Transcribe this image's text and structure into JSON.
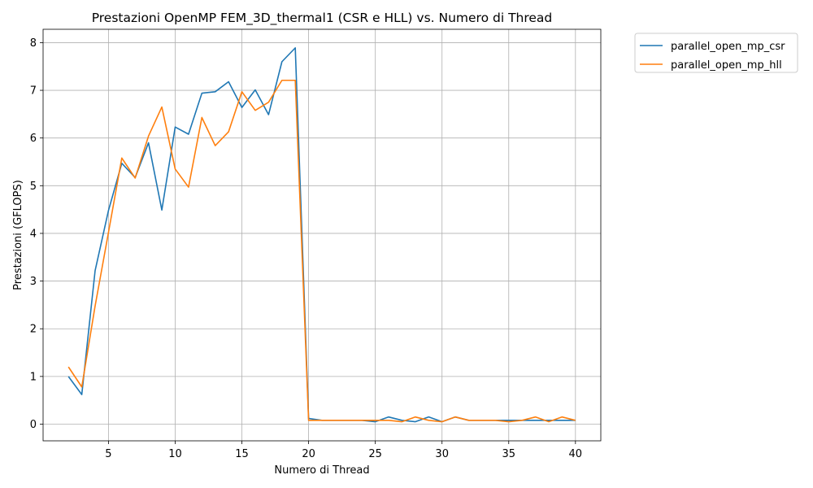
{
  "chart_data": {
    "type": "line",
    "title": "Prestazioni OpenMP FEM_3D_thermal1 (CSR e HLL) vs. Numero di Thread",
    "xlabel": "Numero di Thread",
    "ylabel": "Prestazioni (GFLOPS)",
    "xlim": [
      0.1,
      41.9
    ],
    "ylim": [
      -0.35,
      8.28
    ],
    "xticks": [
      5,
      10,
      15,
      20,
      25,
      30,
      35,
      40
    ],
    "yticks": [
      0,
      1,
      2,
      3,
      4,
      5,
      6,
      7,
      8
    ],
    "grid": true,
    "legend_position": "outside-top-right",
    "x": [
      2,
      3,
      4,
      5,
      6,
      7,
      8,
      9,
      10,
      11,
      12,
      13,
      14,
      15,
      16,
      17,
      18,
      19,
      20,
      21,
      22,
      23,
      24,
      25,
      26,
      27,
      28,
      29,
      30,
      31,
      32,
      33,
      34,
      35,
      36,
      37,
      38,
      39,
      40
    ],
    "series": [
      {
        "name": "parallel_open_mp_csr",
        "color": "#1f77b4",
        "values": [
          1.0,
          0.62,
          3.22,
          4.48,
          5.47,
          5.17,
          5.9,
          4.49,
          6.23,
          6.08,
          6.94,
          6.97,
          7.18,
          6.64,
          7.01,
          6.49,
          7.6,
          7.89,
          0.12,
          0.08,
          0.08,
          0.08,
          0.08,
          0.05,
          0.15,
          0.08,
          0.05,
          0.15,
          0.05,
          0.15,
          0.08,
          0.08,
          0.08,
          0.08,
          0.08,
          0.08,
          0.08,
          0.08,
          0.08
        ]
      },
      {
        "name": "parallel_open_mp_hll",
        "color": "#ff7f0e",
        "values": [
          1.2,
          0.78,
          2.48,
          4.02,
          5.58,
          5.16,
          6.04,
          6.65,
          5.35,
          4.97,
          6.43,
          5.84,
          6.13,
          6.97,
          6.58,
          6.75,
          7.21,
          7.21,
          0.08,
          0.08,
          0.08,
          0.08,
          0.08,
          0.08,
          0.08,
          0.05,
          0.15,
          0.08,
          0.05,
          0.15,
          0.08,
          0.08,
          0.08,
          0.05,
          0.08,
          0.15,
          0.05,
          0.15,
          0.08
        ]
      }
    ]
  }
}
